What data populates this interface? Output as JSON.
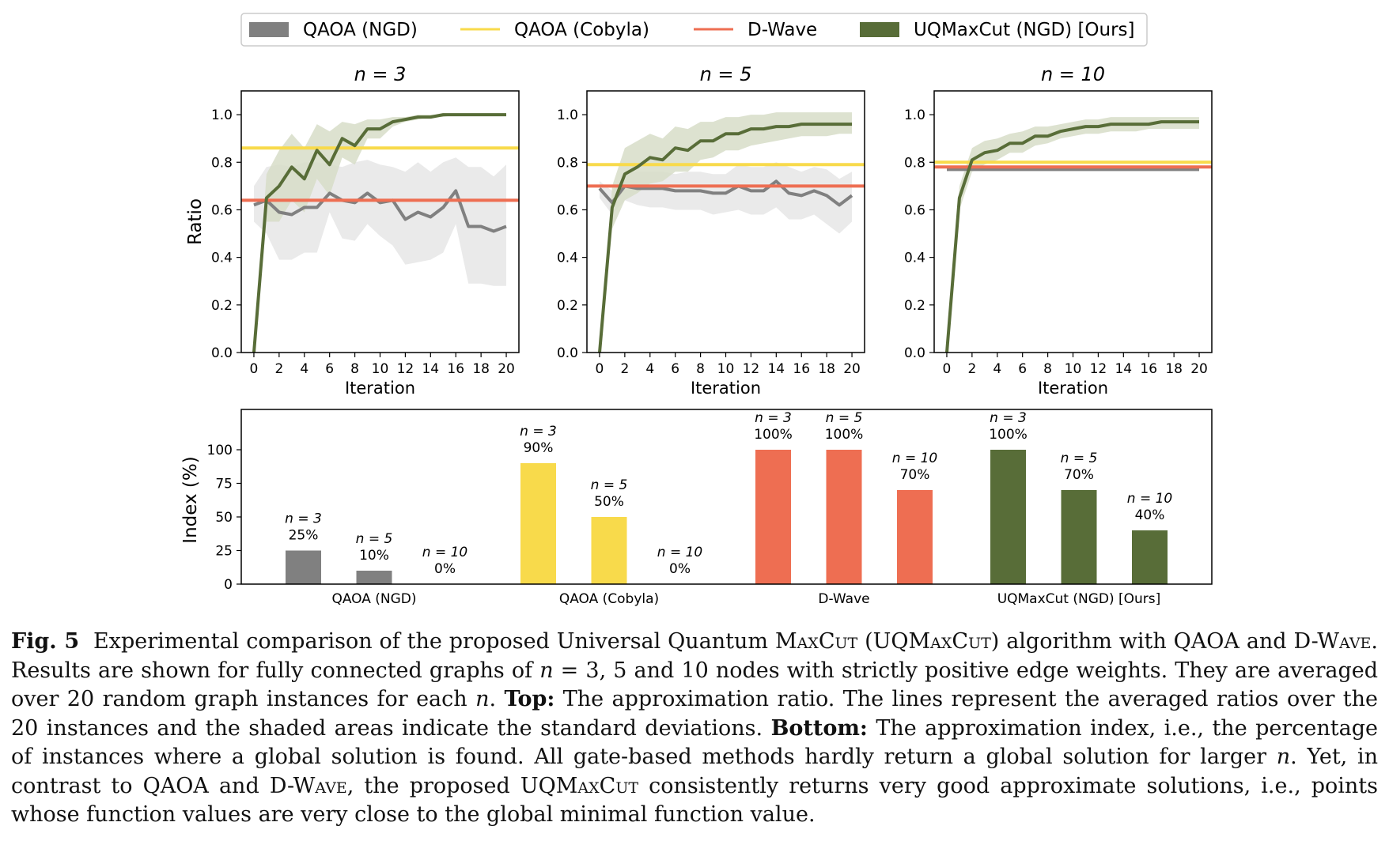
{
  "legend": [
    {
      "label": "QAOA (NGD)",
      "kind": "patch",
      "color": "#808080"
    },
    {
      "label": "QAOA (Cobyla)",
      "kind": "line",
      "color": "#f8da4b"
    },
    {
      "label": "D-Wave",
      "kind": "line",
      "color": "#ee6e52"
    },
    {
      "label": "UQMaxCut (NGD) [Ours]",
      "kind": "patch",
      "color": "#586d38"
    }
  ],
  "colors": {
    "qaoa_ngd": "#808080",
    "qaoa_cobyla": "#f8da4b",
    "dwave": "#ee6e52",
    "uqmaxcut": "#586d38",
    "band_gray": "#e6e6e6",
    "band_green": "#d7ddc8"
  },
  "chart_data": [
    {
      "type": "line",
      "title": "n = 3",
      "xlabel": "Iteration",
      "ylabel": "Ratio",
      "xlim": [
        -1,
        21
      ],
      "ylim": [
        0,
        1.1
      ],
      "xticks": [
        "0",
        "2",
        "4",
        "6",
        "8",
        "10",
        "12",
        "14",
        "16",
        "18",
        "20"
      ],
      "yticks": [
        "0.0",
        "0.2",
        "0.4",
        "0.6",
        "0.8",
        "1.0"
      ],
      "hlines": [
        {
          "name": "QAOA (Cobyla)",
          "y": 0.86
        },
        {
          "name": "D-Wave",
          "y": 0.64
        }
      ],
      "series": [
        {
          "name": "QAOA (NGD)",
          "x": [
            0,
            1,
            2,
            3,
            4,
            5,
            6,
            7,
            8,
            9,
            10,
            11,
            12,
            13,
            14,
            15,
            16,
            17,
            18,
            19,
            20
          ],
          "y": [
            0.62,
            0.64,
            0.59,
            0.58,
            0.61,
            0.61,
            0.67,
            0.64,
            0.63,
            0.67,
            0.63,
            0.64,
            0.56,
            0.59,
            0.57,
            0.61,
            0.68,
            0.53,
            0.53,
            0.51,
            0.53
          ],
          "lower": [
            0.55,
            0.5,
            0.39,
            0.39,
            0.42,
            0.42,
            0.59,
            0.48,
            0.47,
            0.54,
            0.49,
            0.45,
            0.37,
            0.38,
            0.39,
            0.42,
            0.54,
            0.29,
            0.29,
            0.28,
            0.28
          ],
          "upper": [
            0.7,
            0.78,
            0.79,
            0.78,
            0.8,
            0.8,
            0.79,
            0.78,
            0.8,
            0.81,
            0.79,
            0.78,
            0.76,
            0.8,
            0.76,
            0.8,
            0.82,
            0.78,
            0.78,
            0.74,
            0.79
          ]
        },
        {
          "name": "UQMaxCut (NGD) [Ours]",
          "x": [
            0,
            1,
            2,
            3,
            4,
            5,
            6,
            7,
            8,
            9,
            10,
            11,
            12,
            13,
            14,
            15,
            16,
            17,
            18,
            19,
            20
          ],
          "y": [
            0.0,
            0.65,
            0.7,
            0.78,
            0.73,
            0.85,
            0.79,
            0.9,
            0.87,
            0.94,
            0.94,
            0.97,
            0.98,
            0.99,
            0.99,
            1.0,
            1.0,
            1.0,
            1.0,
            1.0,
            1.0
          ],
          "lower": [
            0.0,
            0.55,
            0.55,
            0.64,
            0.59,
            0.73,
            0.66,
            0.82,
            0.79,
            0.9,
            0.9,
            0.95,
            0.97,
            0.98,
            0.99,
            0.99,
            1.0,
            1.0,
            1.0,
            1.0,
            1.0
          ],
          "upper": [
            0.0,
            0.75,
            0.85,
            0.92,
            0.86,
            0.96,
            0.93,
            0.97,
            0.96,
            0.98,
            0.98,
            0.99,
            0.99,
            1.0,
            1.0,
            1.0,
            1.0,
            1.0,
            1.0,
            1.0,
            1.0
          ]
        }
      ]
    },
    {
      "type": "line",
      "title": "n = 5",
      "xlabel": "Iteration",
      "ylabel": "",
      "xlim": [
        -1,
        21
      ],
      "ylim": [
        0,
        1.1
      ],
      "xticks": [
        "0",
        "2",
        "4",
        "6",
        "8",
        "10",
        "12",
        "14",
        "16",
        "18",
        "20"
      ],
      "yticks": [
        "0.0",
        "0.2",
        "0.4",
        "0.6",
        "0.8",
        "1.0"
      ],
      "hlines": [
        {
          "name": "QAOA (Cobyla)",
          "y": 0.79
        },
        {
          "name": "D-Wave",
          "y": 0.7
        }
      ],
      "series": [
        {
          "name": "QAOA (NGD)",
          "x": [
            0,
            1,
            2,
            3,
            4,
            5,
            6,
            7,
            8,
            9,
            10,
            11,
            12,
            13,
            14,
            15,
            16,
            17,
            18,
            19,
            20
          ],
          "y": [
            0.69,
            0.63,
            0.7,
            0.69,
            0.69,
            0.69,
            0.68,
            0.68,
            0.68,
            0.67,
            0.67,
            0.7,
            0.68,
            0.68,
            0.72,
            0.67,
            0.66,
            0.68,
            0.66,
            0.62,
            0.66
          ],
          "lower": [
            0.65,
            0.58,
            0.64,
            0.62,
            0.61,
            0.61,
            0.6,
            0.6,
            0.6,
            0.58,
            0.59,
            0.6,
            0.58,
            0.58,
            0.61,
            0.56,
            0.56,
            0.58,
            0.54,
            0.5,
            0.55
          ],
          "upper": [
            0.72,
            0.68,
            0.75,
            0.76,
            0.76,
            0.76,
            0.75,
            0.76,
            0.76,
            0.75,
            0.75,
            0.79,
            0.78,
            0.78,
            0.8,
            0.78,
            0.76,
            0.78,
            0.77,
            0.73,
            0.76
          ]
        },
        {
          "name": "UQMaxCut (NGD) [Ours]",
          "x": [
            0,
            1,
            2,
            3,
            4,
            5,
            6,
            7,
            8,
            9,
            10,
            11,
            12,
            13,
            14,
            15,
            16,
            17,
            18,
            19,
            20
          ],
          "y": [
            0.0,
            0.61,
            0.75,
            0.78,
            0.82,
            0.81,
            0.86,
            0.85,
            0.89,
            0.89,
            0.92,
            0.92,
            0.94,
            0.94,
            0.95,
            0.95,
            0.96,
            0.96,
            0.96,
            0.96,
            0.96
          ],
          "lower": [
            0.0,
            0.52,
            0.64,
            0.67,
            0.71,
            0.72,
            0.76,
            0.76,
            0.81,
            0.82,
            0.85,
            0.85,
            0.87,
            0.88,
            0.89,
            0.9,
            0.91,
            0.91,
            0.91,
            0.92,
            0.92
          ],
          "upper": [
            0.0,
            0.7,
            0.86,
            0.89,
            0.92,
            0.9,
            0.95,
            0.94,
            0.97,
            0.97,
            0.99,
            0.99,
            1.0,
            1.0,
            1.01,
            1.01,
            1.01,
            1.01,
            1.01,
            1.01,
            1.01
          ]
        }
      ]
    },
    {
      "type": "line",
      "title": "n = 10",
      "xlabel": "Iteration",
      "ylabel": "",
      "xlim": [
        -1,
        21
      ],
      "ylim": [
        0,
        1.1
      ],
      "xticks": [
        "0",
        "2",
        "4",
        "6",
        "8",
        "10",
        "12",
        "14",
        "16",
        "18",
        "20"
      ],
      "yticks": [
        "0.0",
        "0.2",
        "0.4",
        "0.6",
        "0.8",
        "1.0"
      ],
      "hlines": [
        {
          "name": "QAOA (Cobyla)",
          "y": 0.8
        },
        {
          "name": "D-Wave",
          "y": 0.78
        }
      ],
      "series": [
        {
          "name": "QAOA (NGD)",
          "x": [
            0,
            1,
            2,
            3,
            4,
            5,
            6,
            7,
            8,
            9,
            10,
            11,
            12,
            13,
            14,
            15,
            16,
            17,
            18,
            19,
            20
          ],
          "y": [
            0.77,
            0.77,
            0.77,
            0.77,
            0.77,
            0.77,
            0.77,
            0.77,
            0.77,
            0.77,
            0.77,
            0.77,
            0.77,
            0.77,
            0.77,
            0.77,
            0.77,
            0.77,
            0.77,
            0.77,
            0.77
          ],
          "lower": [
            0.76,
            0.76,
            0.76,
            0.76,
            0.76,
            0.76,
            0.76,
            0.76,
            0.76,
            0.76,
            0.76,
            0.76,
            0.76,
            0.76,
            0.76,
            0.76,
            0.76,
            0.76,
            0.76,
            0.76,
            0.76
          ],
          "upper": [
            0.78,
            0.78,
            0.78,
            0.78,
            0.78,
            0.78,
            0.78,
            0.78,
            0.78,
            0.78,
            0.78,
            0.78,
            0.78,
            0.78,
            0.78,
            0.78,
            0.78,
            0.78,
            0.78,
            0.78,
            0.78
          ]
        },
        {
          "name": "UQMaxCut (NGD) [Ours]",
          "x": [
            0,
            1,
            2,
            3,
            4,
            5,
            6,
            7,
            8,
            9,
            10,
            11,
            12,
            13,
            14,
            15,
            16,
            17,
            18,
            19,
            20
          ],
          "y": [
            0.0,
            0.65,
            0.81,
            0.84,
            0.85,
            0.88,
            0.88,
            0.91,
            0.91,
            0.93,
            0.94,
            0.95,
            0.95,
            0.96,
            0.96,
            0.96,
            0.96,
            0.97,
            0.97,
            0.97,
            0.97
          ],
          "lower": [
            0.0,
            0.6,
            0.76,
            0.79,
            0.81,
            0.84,
            0.84,
            0.87,
            0.88,
            0.9,
            0.91,
            0.92,
            0.92,
            0.93,
            0.93,
            0.93,
            0.94,
            0.94,
            0.94,
            0.94,
            0.94
          ],
          "upper": [
            0.0,
            0.7,
            0.86,
            0.89,
            0.9,
            0.92,
            0.93,
            0.95,
            0.95,
            0.96,
            0.97,
            0.98,
            0.98,
            0.99,
            0.99,
            0.99,
            0.99,
            0.99,
            0.99,
            0.99,
            0.99
          ]
        }
      ]
    },
    {
      "type": "bar",
      "xlabel": "",
      "ylabel": "Index (%)",
      "ylim": [
        0,
        130
      ],
      "yticks": [
        "0",
        "25",
        "50",
        "75",
        "100"
      ],
      "groups": [
        {
          "name": "QAOA (NGD)",
          "color": "#808080",
          "bars": [
            {
              "n": "n = 3",
              "value": 25,
              "label": "25%"
            },
            {
              "n": "n = 5",
              "value": 10,
              "label": "10%"
            },
            {
              "n": "n = 10",
              "value": 0,
              "label": "0%"
            }
          ]
        },
        {
          "name": "QAOA (Cobyla)",
          "color": "#f8da4b",
          "bars": [
            {
              "n": "n = 3",
              "value": 90,
              "label": "90%"
            },
            {
              "n": "n = 5",
              "value": 50,
              "label": "50%"
            },
            {
              "n": "n = 10",
              "value": 0,
              "label": "0%"
            }
          ]
        },
        {
          "name": "D-Wave",
          "color": "#ee6e52",
          "bars": [
            {
              "n": "n = 3",
              "value": 100,
              "label": "100%"
            },
            {
              "n": "n = 5",
              "value": 100,
              "label": "100%"
            },
            {
              "n": "n = 10",
              "value": 70,
              "label": "70%"
            }
          ]
        },
        {
          "name": "UQMaxCut (NGD) [Ours]",
          "color": "#586d38",
          "bars": [
            {
              "n": "n = 3",
              "value": 100,
              "label": "100%"
            },
            {
              "n": "n = 5",
              "value": 70,
              "label": "70%"
            },
            {
              "n": "n = 10",
              "value": 40,
              "label": "40%"
            }
          ]
        }
      ]
    }
  ],
  "caption": {
    "fig_label": "Fig. 5",
    "s1": "Experimental comparison of the proposed Universal Quantum ",
    "maxcut1": "MaxCut",
    "s2": " (",
    "uqmaxcut1": "UQMaxCut",
    "s3": ") algorithm with ",
    "qaoa1": "QAOA",
    "s4": " and ",
    "dwave1": "D-Wave",
    "s5": ". Results are shown for fully connected graphs of ",
    "n_eq": "n",
    "s6": " = 3, 5 and 10 nodes with strictly positive edge weights. They are averaged over 20 random graph instances for each ",
    "n2": "n",
    "s7": ". ",
    "top_label": "Top:",
    "s8": " The approximation ratio. The lines represent the averaged ratios over the 20 instances and the shaded areas indicate the standard deviations. ",
    "bottom_label": "Bottom:",
    "s9": " The approximation index, i.e., the percentage of instances where a global solution is found. All gate-based methods hardly return a global solution for larger ",
    "n3": "n",
    "s10": ". Yet, in contrast to ",
    "qaoa2": "QAOA",
    "s11": " and ",
    "dwave2": "D-Wave",
    "s12": ", the proposed ",
    "uqmaxcut2": "UQMaxCut",
    "s13": " consistently returns very good approximate solutions, i.e., points whose function values are very close to the global minimal function value."
  }
}
